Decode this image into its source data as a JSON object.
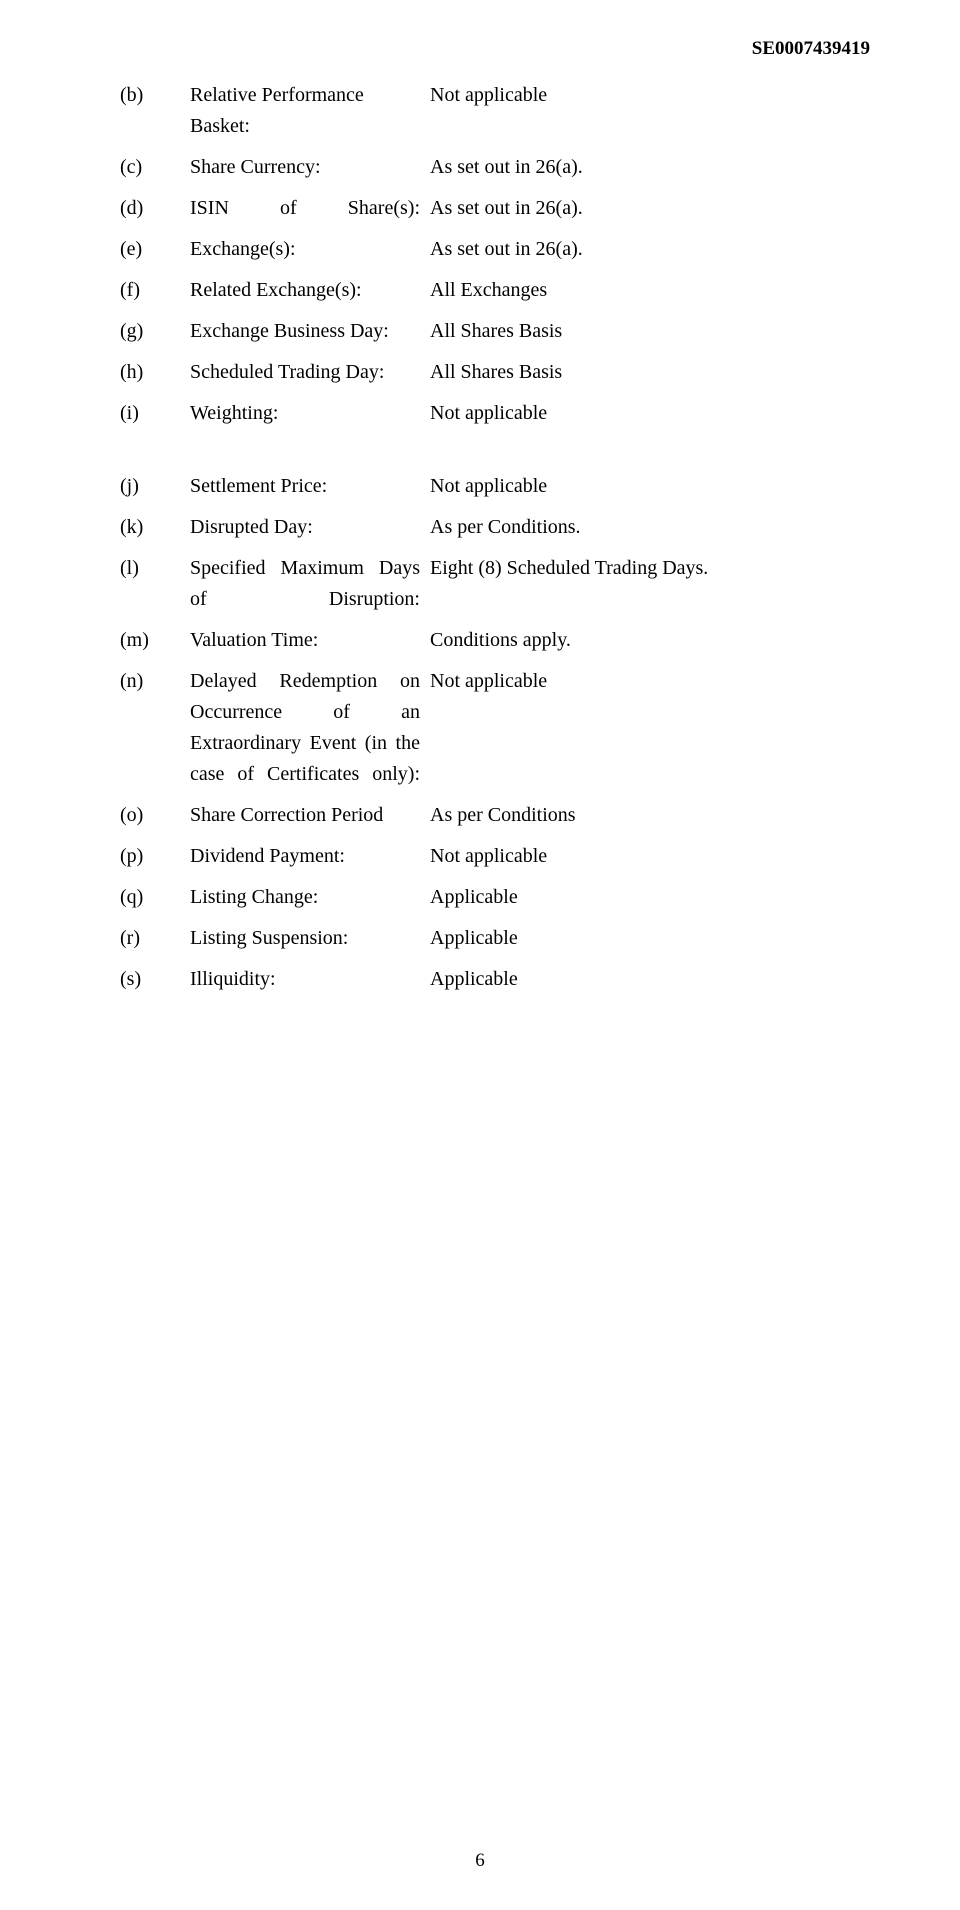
{
  "document_id": "SE0007439419",
  "page_number": "6",
  "section1": [
    {
      "marker": "(b)",
      "label": "Relative Performance Basket:",
      "value": "Not applicable",
      "justify": false
    },
    {
      "marker": "(c)",
      "label": "Share Currency:",
      "value": "As set out in 26(a).",
      "justify": false
    },
    {
      "marker": "(d)",
      "label": "ISIN of Share(s):",
      "value": "As set out in 26(a).",
      "justify": true
    },
    {
      "marker": "(e)",
      "label": "Exchange(s):",
      "value": "As set out in 26(a).",
      "justify": false
    },
    {
      "marker": "(f)",
      "label": "Related Exchange(s):",
      "value": "All Exchanges",
      "justify": false
    },
    {
      "marker": "(g)",
      "label": "Exchange Business Day:",
      "value": "All Shares Basis",
      "justify": false
    },
    {
      "marker": "(h)",
      "label": "Scheduled Trading Day:",
      "value": "All Shares Basis",
      "justify": false
    },
    {
      "marker": "(i)",
      "label": "Weighting:",
      "value": "Not applicable",
      "justify": false
    }
  ],
  "section2": [
    {
      "marker": "(j)",
      "label": "Settlement Price:",
      "value": "Not applicable",
      "justify": false
    },
    {
      "marker": "(k)",
      "label": "Disrupted Day:",
      "value": "As per Conditions.",
      "justify": false
    },
    {
      "marker": "(l)",
      "label": "Specified Maximum Days of Disruption:",
      "value": "Eight (8) Scheduled Trading Days.",
      "justify": true
    },
    {
      "marker": "(m)",
      "label": "Valuation Time:",
      "value": "Conditions apply.",
      "justify": false
    },
    {
      "marker": "(n)",
      "label": "Delayed Redemption on Occurrence of an Extraordinary Event (in the case of Certificates only):",
      "value": "Not applicable",
      "justify": true
    },
    {
      "marker": "(o)",
      "label": "Share Correction Period",
      "value": "As per Conditions",
      "justify": false
    },
    {
      "marker": "(p)",
      "label": "Dividend Payment:",
      "value": "Not applicable",
      "justify": false
    },
    {
      "marker": "(q)",
      "label": "Listing Change:",
      "value": "Applicable",
      "justify": false
    },
    {
      "marker": "(r)",
      "label": "Listing Suspension:",
      "value": "Applicable",
      "justify": false
    },
    {
      "marker": "(s)",
      "label": "Illiquidity:",
      "value": "Applicable",
      "justify": false
    }
  ]
}
